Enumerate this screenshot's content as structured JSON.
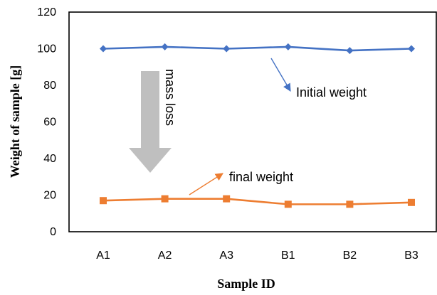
{
  "chart_data": {
    "type": "line",
    "title": "",
    "xlabel": "Sample ID",
    "ylabel": "Weight of sample  [g]",
    "categories": [
      "A1",
      "A2",
      "A3",
      "B1",
      "B2",
      "B3"
    ],
    "ylim": [
      0,
      120
    ],
    "yticks": [
      "0",
      "20",
      "40",
      "60",
      "80",
      "100",
      "120"
    ],
    "grid": false,
    "legend": "none",
    "series": [
      {
        "name": "Initial weight",
        "values": [
          100,
          101,
          100,
          101,
          99,
          100
        ],
        "color": "#4472C4",
        "marker": "diamond"
      },
      {
        "name": "final weight",
        "values": [
          17,
          18,
          18,
          15,
          15,
          16
        ],
        "color": "#ED7D31",
        "marker": "square"
      }
    ],
    "annotations": [
      {
        "text": "mass loss",
        "style": "big-down-arrow",
        "color": "#BFBFBF"
      },
      {
        "text": "Initial weight",
        "style": "callout-arrow",
        "color": "#4472C4"
      },
      {
        "text": "final weight",
        "style": "callout-arrow",
        "color": "#ED7D31"
      }
    ]
  }
}
